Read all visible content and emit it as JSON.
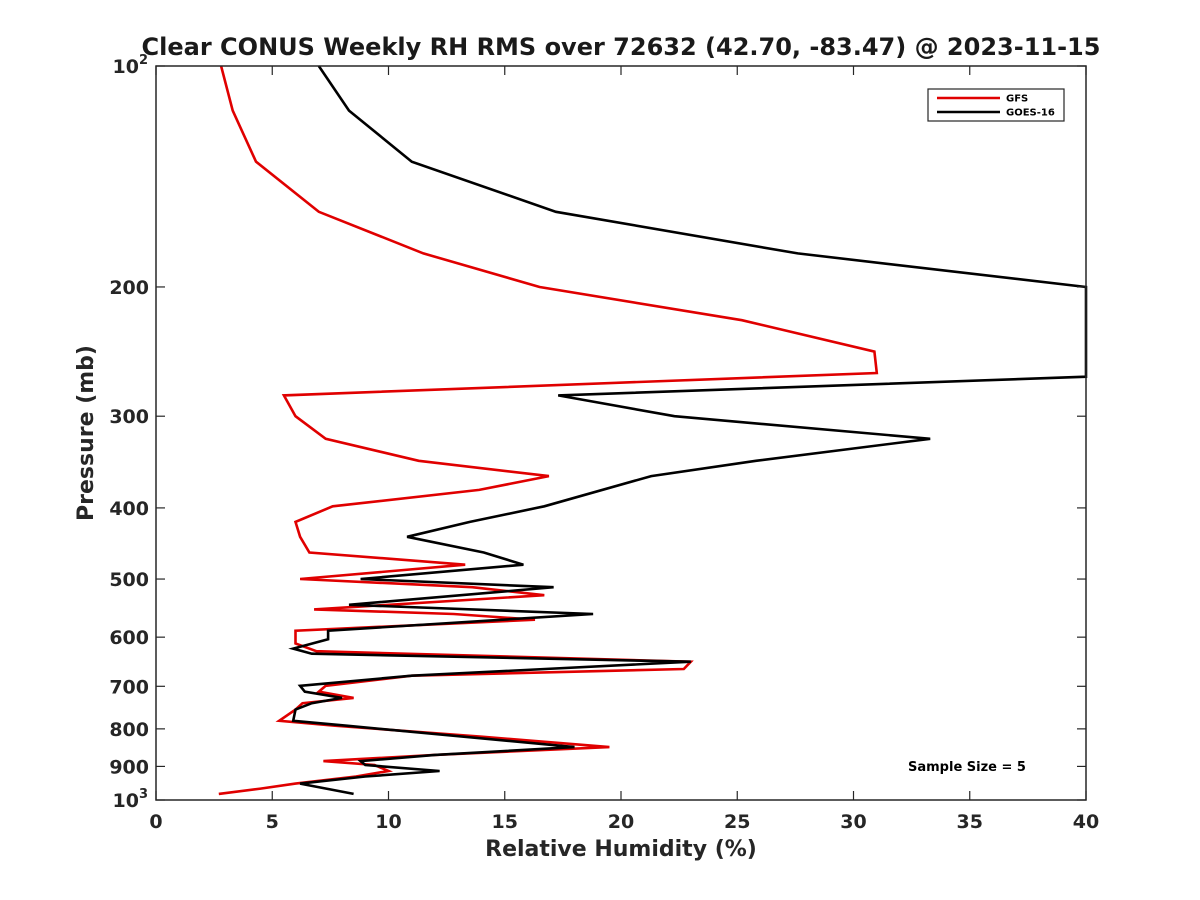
{
  "chart_data": {
    "type": "line",
    "title": "Clear CONUS Weekly RH RMS over 72632 (42.70, -83.47) @ 2023-11-15",
    "xlabel": "Relative Humidity (%)",
    "ylabel": "Pressure (mb)",
    "xlim": [
      0,
      40
    ],
    "ylim": [
      100,
      1000
    ],
    "yscale": "log",
    "y_reversed": true,
    "x_ticks": [
      "0",
      "5",
      "10",
      "15",
      "20",
      "25",
      "30",
      "35",
      "40"
    ],
    "y_ticks": [
      {
        "value": 100,
        "base": "10",
        "exp": "2"
      },
      {
        "value": 200,
        "label": "200"
      },
      {
        "value": 300,
        "label": "300"
      },
      {
        "value": 400,
        "label": "400"
      },
      {
        "value": 500,
        "label": "500"
      },
      {
        "value": 600,
        "label": "600"
      },
      {
        "value": 700,
        "label": "700"
      },
      {
        "value": 800,
        "label": "800"
      },
      {
        "value": 900,
        "label": "900"
      },
      {
        "value": 1000,
        "base": "10",
        "exp": "3"
      }
    ],
    "legend_position": "top-right",
    "annotation": "Sample Size = 5",
    "series": [
      {
        "name": "GFS",
        "color": "#e00000",
        "points": [
          [
            2.8,
            100
          ],
          [
            3.3,
            115
          ],
          [
            4.3,
            135
          ],
          [
            7.0,
            158
          ],
          [
            11.5,
            180
          ],
          [
            16.5,
            200
          ],
          [
            25.2,
            222
          ],
          [
            30.9,
            245
          ],
          [
            31.0,
            262
          ],
          [
            5.5,
            281
          ],
          [
            6.0,
            300
          ],
          [
            7.3,
            322
          ],
          [
            11.3,
            345
          ],
          [
            16.9,
            362
          ],
          [
            13.9,
            378
          ],
          [
            7.6,
            398
          ],
          [
            6.0,
            418
          ],
          [
            6.2,
            438
          ],
          [
            6.6,
            460
          ],
          [
            13.3,
            478
          ],
          [
            6.2,
            500
          ],
          [
            13.6,
            513
          ],
          [
            16.7,
            526
          ],
          [
            6.8,
            550
          ],
          [
            12.8,
            558
          ],
          [
            16.3,
            568
          ],
          [
            6.0,
            588
          ],
          [
            6.0,
            612
          ],
          [
            6.9,
            627
          ],
          [
            23.0,
            648
          ],
          [
            22.7,
            663
          ],
          [
            11.0,
            677
          ],
          [
            7.3,
            699
          ],
          [
            7.0,
            712
          ],
          [
            8.5,
            726
          ],
          [
            6.3,
            738
          ],
          [
            6.0,
            753
          ],
          [
            5.3,
            780
          ],
          [
            7.7,
            792
          ],
          [
            14.0,
            820
          ],
          [
            19.5,
            847
          ],
          [
            12.0,
            868
          ],
          [
            7.2,
            885
          ],
          [
            9.4,
            896
          ],
          [
            10.0,
            913
          ],
          [
            8.6,
            929
          ],
          [
            6.0,
            950
          ],
          [
            4.5,
            965
          ],
          [
            2.7,
            981
          ]
        ]
      },
      {
        "name": "GOES-16",
        "color": "#000000",
        "points": [
          [
            7.0,
            100
          ],
          [
            8.3,
            115
          ],
          [
            11.0,
            135
          ],
          [
            17.2,
            158
          ],
          [
            27.6,
            180
          ],
          [
            40.0,
            200
          ],
          [
            40.0,
            265
          ],
          [
            17.3,
            281
          ],
          [
            22.3,
            300
          ],
          [
            33.3,
            322
          ],
          [
            25.8,
            345
          ],
          [
            21.3,
            362
          ],
          [
            16.7,
            398
          ],
          [
            13.5,
            418
          ],
          [
            10.8,
            438
          ],
          [
            14.1,
            460
          ],
          [
            15.8,
            478
          ],
          [
            8.8,
            500
          ],
          [
            17.1,
            513
          ],
          [
            8.3,
            542
          ],
          [
            18.8,
            558
          ],
          [
            7.4,
            588
          ],
          [
            7.4,
            604
          ],
          [
            5.9,
            622
          ],
          [
            6.7,
            632
          ],
          [
            23.0,
            648
          ],
          [
            11.0,
            677
          ],
          [
            6.2,
            699
          ],
          [
            6.4,
            712
          ],
          [
            8.0,
            726
          ],
          [
            6.7,
            738
          ],
          [
            6.0,
            753
          ],
          [
            5.9,
            780
          ],
          [
            8.2,
            792
          ],
          [
            18.0,
            847
          ],
          [
            12.0,
            868
          ],
          [
            8.8,
            885
          ],
          [
            9.0,
            896
          ],
          [
            12.2,
            913
          ],
          [
            9.0,
            929
          ],
          [
            6.2,
            950
          ],
          [
            8.5,
            981
          ]
        ]
      }
    ]
  }
}
